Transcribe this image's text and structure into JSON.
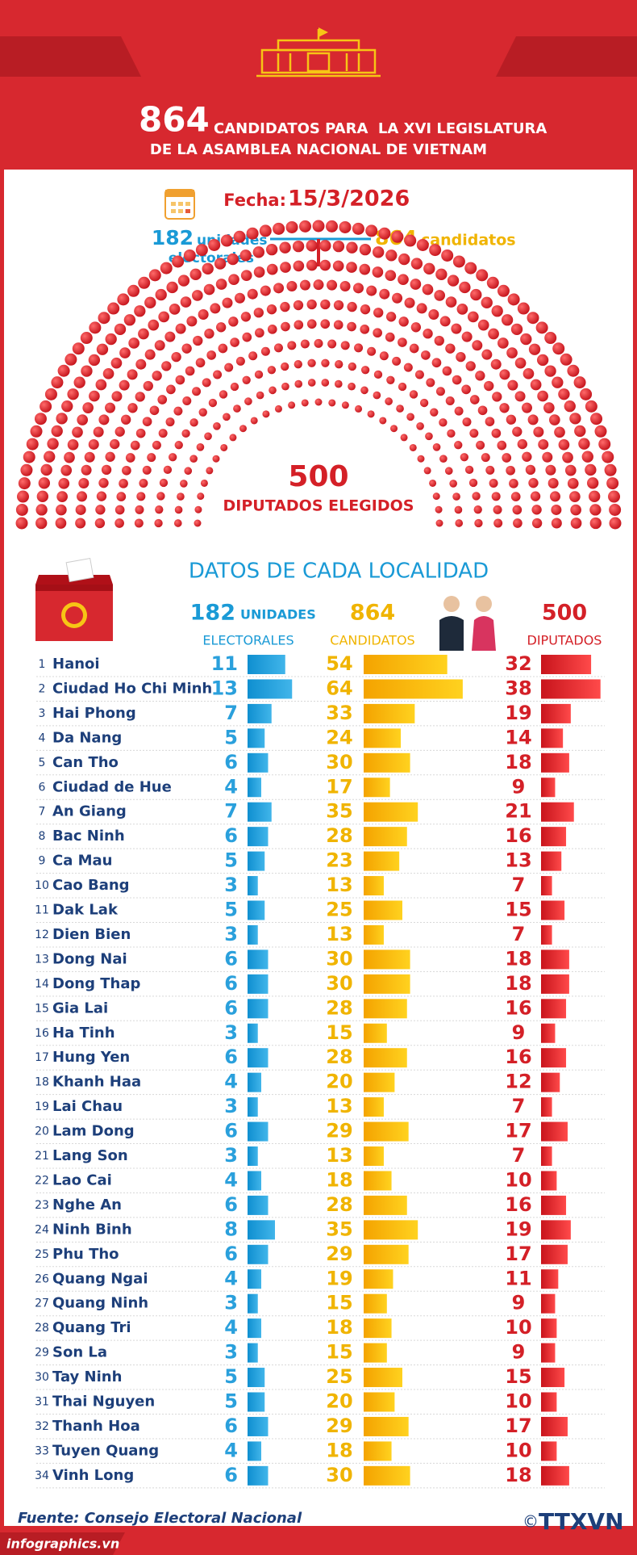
{
  "header": {
    "count": "864",
    "title_line1": "CANDIDATOS PARA  LA XVI LEGISLATURA",
    "title_line2": "DE LA ASAMBLEA NACIONAL DE VIETNAM"
  },
  "date": {
    "label": "Fecha:",
    "value": "15/3/2026"
  },
  "summary": {
    "units_count": "182",
    "units_label_1": "unidades",
    "units_label_2": "electorales",
    "candidates_count": "864",
    "candidates_label": "candidatos"
  },
  "hemicycle": {
    "count": 500,
    "label": "DIPUTADOS ELEGIDOS"
  },
  "section_title": "DATOS DE CADA LOCALIDAD",
  "columns": {
    "units": {
      "count": "182",
      "label_1": "UNIDADES",
      "label_2": "ELECTORALES"
    },
    "candidates": {
      "count": "864",
      "label": "CANDIDATOS"
    },
    "deputies": {
      "count": "500",
      "label": "DIPUTADOS"
    }
  },
  "rows": [
    {
      "no": 1,
      "name": "Hanoi",
      "units": 11,
      "candidates": 54,
      "deputies": 32
    },
    {
      "no": 2,
      "name": "Ciudad Ho Chi Minh",
      "units": 13,
      "candidates": 64,
      "deputies": 38
    },
    {
      "no": 3,
      "name": "Hai Phong",
      "units": 7,
      "candidates": 33,
      "deputies": 19
    },
    {
      "no": 4,
      "name": "Da Nang",
      "units": 5,
      "candidates": 24,
      "deputies": 14
    },
    {
      "no": 5,
      "name": "Can Tho",
      "units": 6,
      "candidates": 30,
      "deputies": 18
    },
    {
      "no": 6,
      "name": "Ciudad de Hue",
      "units": 4,
      "candidates": 17,
      "deputies": 9
    },
    {
      "no": 7,
      "name": "An Giang",
      "units": 7,
      "candidates": 35,
      "deputies": 21
    },
    {
      "no": 8,
      "name": "Bac Ninh",
      "units": 6,
      "candidates": 28,
      "deputies": 16
    },
    {
      "no": 9,
      "name": "Ca Mau",
      "units": 5,
      "candidates": 23,
      "deputies": 13
    },
    {
      "no": 10,
      "name": "Cao Bang",
      "units": 3,
      "candidates": 13,
      "deputies": 7
    },
    {
      "no": 11,
      "name": "Dak Lak",
      "units": 5,
      "candidates": 25,
      "deputies": 15
    },
    {
      "no": 12,
      "name": "Dien Bien",
      "units": 3,
      "candidates": 13,
      "deputies": 7
    },
    {
      "no": 13,
      "name": "Dong Nai",
      "units": 6,
      "candidates": 30,
      "deputies": 18
    },
    {
      "no": 14,
      "name": "Dong Thap",
      "units": 6,
      "candidates": 30,
      "deputies": 18
    },
    {
      "no": 15,
      "name": "Gia Lai",
      "units": 6,
      "candidates": 28,
      "deputies": 16
    },
    {
      "no": 16,
      "name": "Ha Tinh",
      "units": 3,
      "candidates": 15,
      "deputies": 9
    },
    {
      "no": 17,
      "name": "Hung Yen",
      "units": 6,
      "candidates": 28,
      "deputies": 16
    },
    {
      "no": 18,
      "name": "Khanh Haa",
      "units": 4,
      "candidates": 20,
      "deputies": 12
    },
    {
      "no": 19,
      "name": "Lai Chau",
      "units": 3,
      "candidates": 13,
      "deputies": 7
    },
    {
      "no": 20,
      "name": "Lam Dong",
      "units": 6,
      "candidates": 29,
      "deputies": 17
    },
    {
      "no": 21,
      "name": "Lang Son",
      "units": 3,
      "candidates": 13,
      "deputies": 7
    },
    {
      "no": 22,
      "name": "Lao Cai",
      "units": 4,
      "candidates": 18,
      "deputies": 10
    },
    {
      "no": 23,
      "name": "Nghe An",
      "units": 6,
      "candidates": 28,
      "deputies": 16
    },
    {
      "no": 24,
      "name": "Ninh Binh",
      "units": 8,
      "candidates": 35,
      "deputies": 19
    },
    {
      "no": 25,
      "name": "Phu Tho",
      "units": 6,
      "candidates": 29,
      "deputies": 17
    },
    {
      "no": 26,
      "name": "Quang Ngai",
      "units": 4,
      "candidates": 19,
      "deputies": 11
    },
    {
      "no": 27,
      "name": "Quang Ninh",
      "units": 3,
      "candidates": 15,
      "deputies": 9
    },
    {
      "no": 28,
      "name": "Quang Tri",
      "units": 4,
      "candidates": 18,
      "deputies": 10
    },
    {
      "no": 29,
      "name": "Son La",
      "units": 3,
      "candidates": 15,
      "deputies": 9
    },
    {
      "no": 30,
      "name": "Tay Ninh",
      "units": 5,
      "candidates": 25,
      "deputies": 15
    },
    {
      "no": 31,
      "name": "Thai Nguyen",
      "units": 5,
      "candidates": 20,
      "deputies": 10
    },
    {
      "no": 32,
      "name": "Thanh Hoa",
      "units": 6,
      "candidates": 29,
      "deputies": 17
    },
    {
      "no": 33,
      "name": "Tuyen Quang",
      "units": 4,
      "candidates": 18,
      "deputies": 10
    },
    {
      "no": 34,
      "name": "Vinh Long",
      "units": 6,
      "candidates": 30,
      "deputies": 18
    }
  ],
  "footer": {
    "source": "Fuente: Consejo Electoral Nacional",
    "site": "infographics.vn",
    "agency": "TTXVN"
  }
}
